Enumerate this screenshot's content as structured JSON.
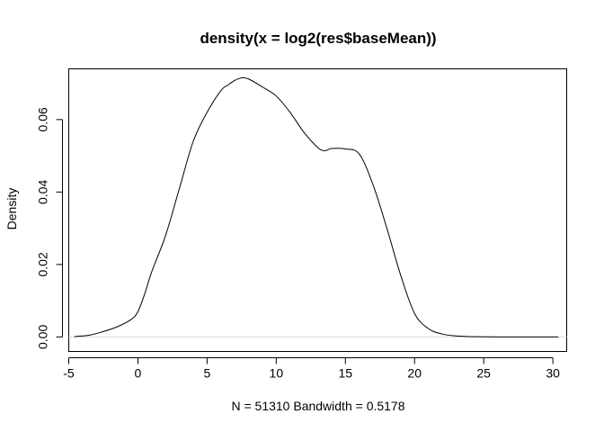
{
  "chart_data": {
    "type": "line",
    "title": "density(x = log2(res$baseMean))",
    "xlabel": "N = 51310   Bandwidth = 0.5178",
    "ylabel": "Density",
    "xlim": [
      -5,
      31
    ],
    "ylim": [
      -0.004,
      0.074
    ],
    "x_ticks": [
      -5,
      0,
      5,
      10,
      15,
      20,
      25,
      30
    ],
    "y_ticks": [
      0.0,
      0.02,
      0.04,
      0.06
    ],
    "x_tick_labels": [
      "-5",
      "0",
      "5",
      "10",
      "15",
      "20",
      "25",
      "30"
    ],
    "y_tick_labels": [
      "0.00",
      "0.02",
      "0.04",
      "0.06"
    ],
    "grid": false,
    "series": [
      {
        "x": [
          -4.6,
          -3.5,
          -2.5,
          -1.5,
          -0.5,
          0,
          0.5,
          1,
          2,
          3,
          4,
          5,
          6,
          6.5,
          7,
          7.5,
          8,
          9,
          10,
          11,
          12,
          13,
          13.5,
          14,
          15,
          16,
          17,
          18,
          19,
          20,
          21,
          22,
          23,
          24,
          25,
          26,
          28,
          30.4
        ],
        "y": [
          0.0001,
          0.0005,
          0.0015,
          0.0028,
          0.0048,
          0.007,
          0.012,
          0.018,
          0.028,
          0.041,
          0.054,
          0.062,
          0.068,
          0.0695,
          0.0708,
          0.0715,
          0.0712,
          0.069,
          0.0665,
          0.062,
          0.0565,
          0.0523,
          0.0514,
          0.052,
          0.0519,
          0.0505,
          0.042,
          0.03,
          0.017,
          0.0065,
          0.0023,
          0.0008,
          0.0003,
          0.0001,
          5e-05,
          2e-05,
          1e-05,
          0.0
        ]
      }
    ]
  }
}
